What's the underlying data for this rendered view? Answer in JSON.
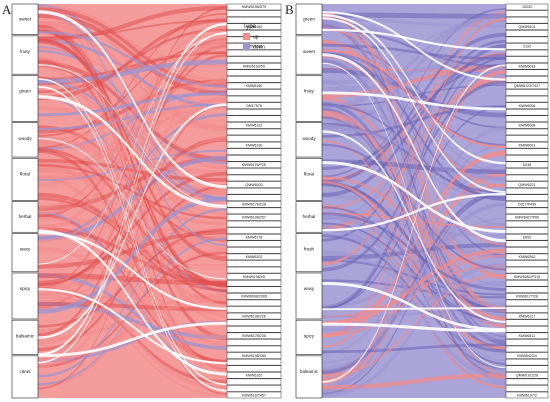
{
  "panels": [
    {
      "label": "A"
    },
    {
      "label": "B"
    }
  ],
  "legend": {
    "title": "Type",
    "items": [
      {
        "label": "up",
        "color": "#f28b8b"
      },
      {
        "label": "down",
        "color": "#9b94d1"
      }
    ]
  },
  "chart_data": [
    {
      "type": "sankey",
      "panel": "A",
      "source_nodes": [
        "sweet",
        "fruity",
        "green",
        "woody",
        "floral",
        "herbal",
        "waxy",
        "spicy",
        "balsamic",
        "citrus"
      ],
      "target_nodes_visible": [
        "KMW6198/D79",
        "KMW6182",
        "KMW6186",
        "KMW6193/5S",
        "KMW6180",
        "DM17578",
        "KMW6192",
        "KMW6190",
        "KMW6176/P2E",
        "QMW6003",
        "KMW6176/228",
        "KMW6198/257",
        "KMW6178",
        "KMW6202",
        "KMW6198/4D",
        "KMW6098/2065",
        "KMW6198/226",
        "KMW6178/238",
        "KMW6198/C60",
        "KMW6162",
        "KMW6167/457"
      ],
      "flow_colors": {
        "up": "#f28b8b",
        "down": "#9b94d1"
      },
      "dominant_type": "up"
    },
    {
      "type": "sankey",
      "panel": "B",
      "source_nodes": [
        "green",
        "sweet",
        "fruity",
        "woody",
        "floral",
        "herbal",
        "fresh",
        "waxy",
        "spicy",
        "balsamic"
      ],
      "target_nodes_visible": [
        "10032",
        "QMW6101",
        "2192",
        "KMW6018",
        "QMW6123/7427",
        "KMW6006",
        "KMW6008",
        "KMW6001",
        "D246",
        "QMW6221",
        "D317/P439",
        "KMW6427/P60",
        "D092",
        "KMW6362",
        "KMW6082/P319",
        "KMW6177/28",
        "KMW6117",
        "KMW6411",
        "KMW6423/4",
        "QMW6101/28",
        "KMW6197/2"
      ],
      "flow_colors": {
        "up": "#f28b8b",
        "down": "#9b94d1"
      },
      "dominant_type": "down"
    }
  ]
}
